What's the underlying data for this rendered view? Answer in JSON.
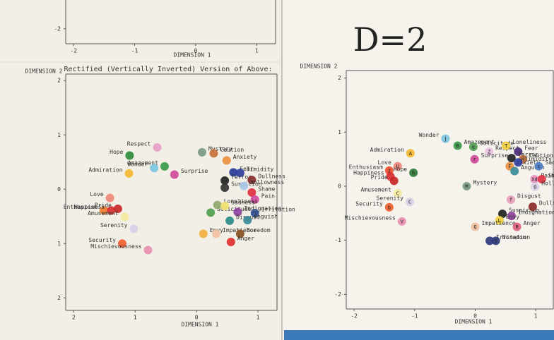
{
  "chart_data": [
    {
      "type": "scatter",
      "xlabel": "DIMENSION 1",
      "xlim": [
        -2.13,
        1.31
      ],
      "ylim": [
        -2.26,
        -1.5
      ],
      "xticks": [
        -2,
        -1,
        0,
        1
      ],
      "yticks": [
        -2
      ],
      "labels": [],
      "x": [],
      "y": [],
      "colors": []
    },
    {
      "type": "scatter",
      "title": "Rectified (Vertically Inverted) Version of Above:",
      "xlabel": "DIMENSION 1",
      "ylabel": "DIMENSION 2",
      "xlim": [
        -2.13,
        1.31
      ],
      "ylim": [
        -2.23,
        2.12
      ],
      "xticks": [
        {
          "value": -2,
          "label": "2"
        },
        {
          "value": -1,
          "label": "1"
        },
        0,
        1
      ],
      "yticks": [
        2,
        1,
        0,
        {
          "value": -1,
          "label": "1"
        },
        {
          "value": -2,
          "label": "2"
        }
      ],
      "labels": [
        "Respect",
        "Hope",
        "Amazement",
        "Wonder",
        "Admiration",
        "Surprise",
        "Mystery",
        "Caution",
        "Anxiety",
        "Fear",
        "Timidity",
        "Terror",
        "Dullness",
        "Suspicion",
        "Hollowness",
        "Shame",
        "Pain",
        "Love",
        "Enthusiasm",
        "Happiness",
        "Pride",
        "Amusement",
        "Solicitude",
        "Loneliness",
        "Sadness",
        "Indignation",
        "Disgust",
        "Irritation",
        "Anguish",
        "Serenity",
        "Security",
        "Envy",
        "Impatience",
        "Boredom",
        "Anger",
        "Mischievousness"
      ],
      "x": [
        -0.64,
        -1.09,
        -0.52,
        -0.69,
        -1.1,
        -0.36,
        0.09,
        0.28,
        0.49,
        0.6,
        0.71,
        0.46,
        0.9,
        0.46,
        0.77,
        0.9,
        0.95,
        -1.41,
        -1.51,
        -1.39,
        -1.28,
        -1.17,
        0.23,
        0.34,
        0.46,
        0.67,
        0.54,
        0.95,
        0.83,
        -1.02,
        -1.21,
        0.11,
        0.32,
        0.71,
        0.56,
        -0.79
      ],
      "y": [
        0.77,
        0.62,
        0.42,
        0.39,
        0.29,
        0.27,
        0.68,
        0.66,
        0.53,
        0.31,
        0.3,
        0.16,
        0.17,
        0.03,
        0.06,
        -0.06,
        -0.19,
        -0.16,
        -0.39,
        -0.39,
        -0.36,
        -0.51,
        -0.43,
        -0.29,
        -0.31,
        -0.42,
        -0.58,
        -0.44,
        -0.57,
        -0.73,
        -1.0,
        -0.82,
        -0.82,
        -0.82,
        -0.97,
        -1.12
      ],
      "colors": [
        "#e8a0c8",
        "#2e8b3a",
        "#3a9a4a",
        "#7cc4e0",
        "#f4b830",
        "#d04a9a",
        "#7a9a88",
        "#c8703a",
        "#e89040",
        "#2a3a9a",
        "#3040a0",
        "#222222",
        "#8a2a2a",
        "#333333",
        "#a8c8e8",
        "#e03040",
        "#d04aa0",
        "#f08878",
        "#f08030",
        "#d83030",
        "#c82828",
        "#f4e8a0",
        "#50a050",
        "#90a870",
        "#f0e070",
        "#9040a0",
        "#2a8a8a",
        "#2a4a8a",
        "#3a8a9a",
        "#d8d0e8",
        "#f06030",
        "#f0b040",
        "#f0c0a0",
        "#8a5020",
        "#e03030",
        "#e890b0"
      ]
    },
    {
      "type": "scatter",
      "annotation": "D=2",
      "xlabel": "DIMENSION 1",
      "ylabel": "DIMENSION 2",
      "xlim": [
        -2.13,
        1.29
      ],
      "ylim": [
        -2.27,
        2.14
      ],
      "xticks": [
        -2,
        -1,
        0,
        1
      ],
      "yticks": [
        2,
        1,
        0,
        -1,
        -2
      ],
      "labels": [
        "Wonder",
        "Admiration",
        "Amazement",
        "Solicitude",
        "Respect",
        "Loneliness",
        "Fear",
        "Caution",
        "Surprise",
        "Terror",
        "Anxiety",
        "Timidity",
        "Anguish",
        "Sadness",
        "Pain",
        "Shame",
        "Hollowness",
        "Love",
        "Enthusiasm",
        "Happiness",
        "Pride",
        "Hope",
        "Amusement",
        "Mystery",
        "Serenity",
        "Security",
        "Mischievousness",
        "Disgust",
        "Suspicion",
        "Indignation",
        "Envy",
        "Impatience",
        "Anger",
        "Dullness",
        "Irritation",
        "Boredom"
      ],
      "x": [
        -0.49,
        -1.07,
        -0.29,
        -0.03,
        0.23,
        0.51,
        0.71,
        0.79,
        -0.01,
        0.6,
        0.57,
        0.71,
        0.65,
        1.05,
        0.98,
        1.1,
        0.99,
        -1.28,
        -1.42,
        -1.4,
        -1.34,
        -1.02,
        -1.28,
        -0.14,
        -1.08,
        -1.42,
        -1.21,
        0.59,
        0.45,
        0.6,
        0.4,
        0.0,
        0.69,
        0.95,
        0.24,
        0.34
      ],
      "y": [
        0.88,
        0.61,
        0.75,
        0.73,
        0.64,
        0.75,
        0.64,
        0.5,
        0.5,
        0.52,
        0.37,
        0.44,
        0.28,
        0.37,
        0.13,
        0.13,
        -0.01,
        0.37,
        0.29,
        0.18,
        0.1,
        0.25,
        -0.13,
        0.0,
        -0.29,
        -0.39,
        -0.65,
        -0.25,
        -0.51,
        -0.55,
        -0.63,
        -0.75,
        -0.75,
        -0.38,
        -1.01,
        -1.01
      ],
      "codes": [
        "j",
        "A",
        "B",
        "e",
        "Z",
        "T",
        null,
        "H",
        "r",
        null,
        "F",
        null,
        null,
        "c",
        "Xd",
        null,
        "O",
        "U",
        "2",
        null,
        null,
        "h",
        "C",
        "M",
        "C",
        "b",
        "V",
        "f",
        null,
        null,
        "L",
        "Q",
        "R",
        null,
        null,
        "S"
      ],
      "colors": [
        "#7cc4e0",
        "#f4b830",
        "#3a9a4a",
        "#50a050",
        "#e8c0e0",
        "#f0d040",
        "#4a2a7a",
        "#c8703a",
        "#d04a9a",
        "#222222",
        "#e89040",
        "#3040a0",
        "#3a8a9a",
        "#4a80c8",
        "#e890c0",
        "#e03040",
        "#d8d0e8",
        "#f08878",
        "#f05030",
        "#d83030",
        "#c82828",
        "#2e7a3a",
        "#f4e8a0",
        "#7a9a88",
        "#d8d0e8",
        "#f06030",
        "#e890b0",
        "#e8a0b8",
        "#222222",
        "#9040a0",
        "#f0d040",
        "#f0c0a0",
        "#e06080",
        "#8a2a2a",
        "#2a3a7a",
        "#2a3a7a"
      ]
    }
  ]
}
